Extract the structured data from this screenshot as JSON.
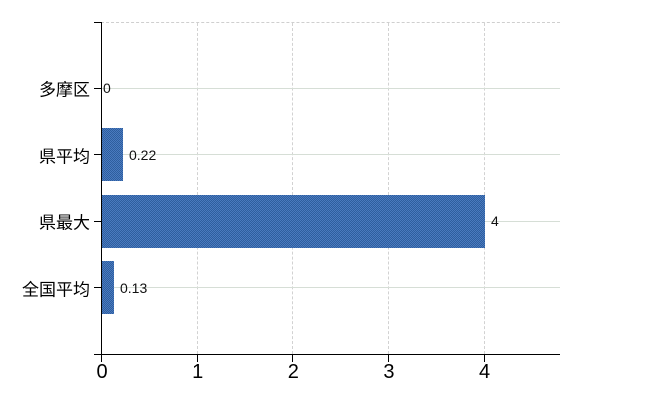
{
  "chart_data": {
    "type": "bar",
    "orientation": "horizontal",
    "title": "",
    "xlabel": "",
    "ylabel": "",
    "categories": [
      "多摩区",
      "県平均",
      "県最大",
      "全国平均"
    ],
    "values": [
      0,
      0.22,
      4,
      0.13
    ],
    "value_labels": [
      "0",
      "0.22",
      "4",
      "0.13"
    ],
    "x_ticks": [
      0,
      1,
      2,
      3,
      4
    ],
    "x_tick_labels": [
      "0",
      "1",
      "2",
      "3",
      "4"
    ],
    "xlim": [
      0,
      4.8
    ],
    "grid": true,
    "legend": "none",
    "colors": {
      "bar": "#3b6cb0",
      "bar_dither_light": "#4a7abf",
      "bar_dither_dark": "#2e5e9e",
      "horizontal_gridline": "#d6ded6",
      "vertical_gridline": "#d2d2d2",
      "plot_border_dashed": "#cfcfcf",
      "axis": "#000000",
      "text": "#000000",
      "background": "#ffffff"
    }
  }
}
